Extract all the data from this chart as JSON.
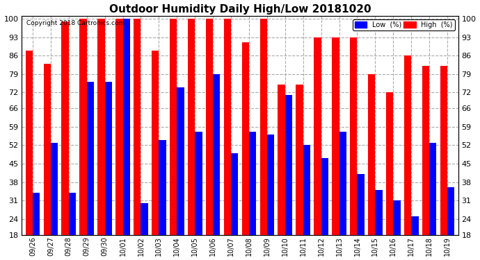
{
  "title": "Outdoor Humidity Daily High/Low 20181020",
  "copyright": "Copyright 2018 Cartronics.com",
  "dates": [
    "09/26",
    "09/27",
    "09/28",
    "09/29",
    "09/30",
    "10/01",
    "10/02",
    "10/03",
    "10/04",
    "10/05",
    "10/06",
    "10/07",
    "10/08",
    "10/09",
    "10/10",
    "10/11",
    "10/12",
    "10/13",
    "10/14",
    "10/15",
    "10/16",
    "10/17",
    "10/18",
    "10/19"
  ],
  "high": [
    88,
    83,
    99,
    100,
    100,
    100,
    100,
    88,
    100,
    100,
    100,
    100,
    91,
    100,
    75,
    75,
    93,
    93,
    93,
    79,
    72,
    86,
    82,
    82
  ],
  "low": [
    34,
    53,
    34,
    76,
    76,
    100,
    30,
    54,
    74,
    57,
    79,
    49,
    57,
    56,
    71,
    52,
    47,
    57,
    41,
    35,
    31,
    25,
    53,
    36
  ],
  "high_color": "#ff0000",
  "low_color": "#0000ff",
  "bg_color": "#ffffff",
  "grid_color": "#aaaaaa",
  "ylim": [
    18,
    101
  ],
  "yticks": [
    18,
    24,
    31,
    38,
    45,
    52,
    59,
    66,
    72,
    79,
    86,
    93,
    100
  ],
  "bar_width": 0.4,
  "figwidth": 6.9,
  "figheight": 3.75,
  "dpi": 100
}
